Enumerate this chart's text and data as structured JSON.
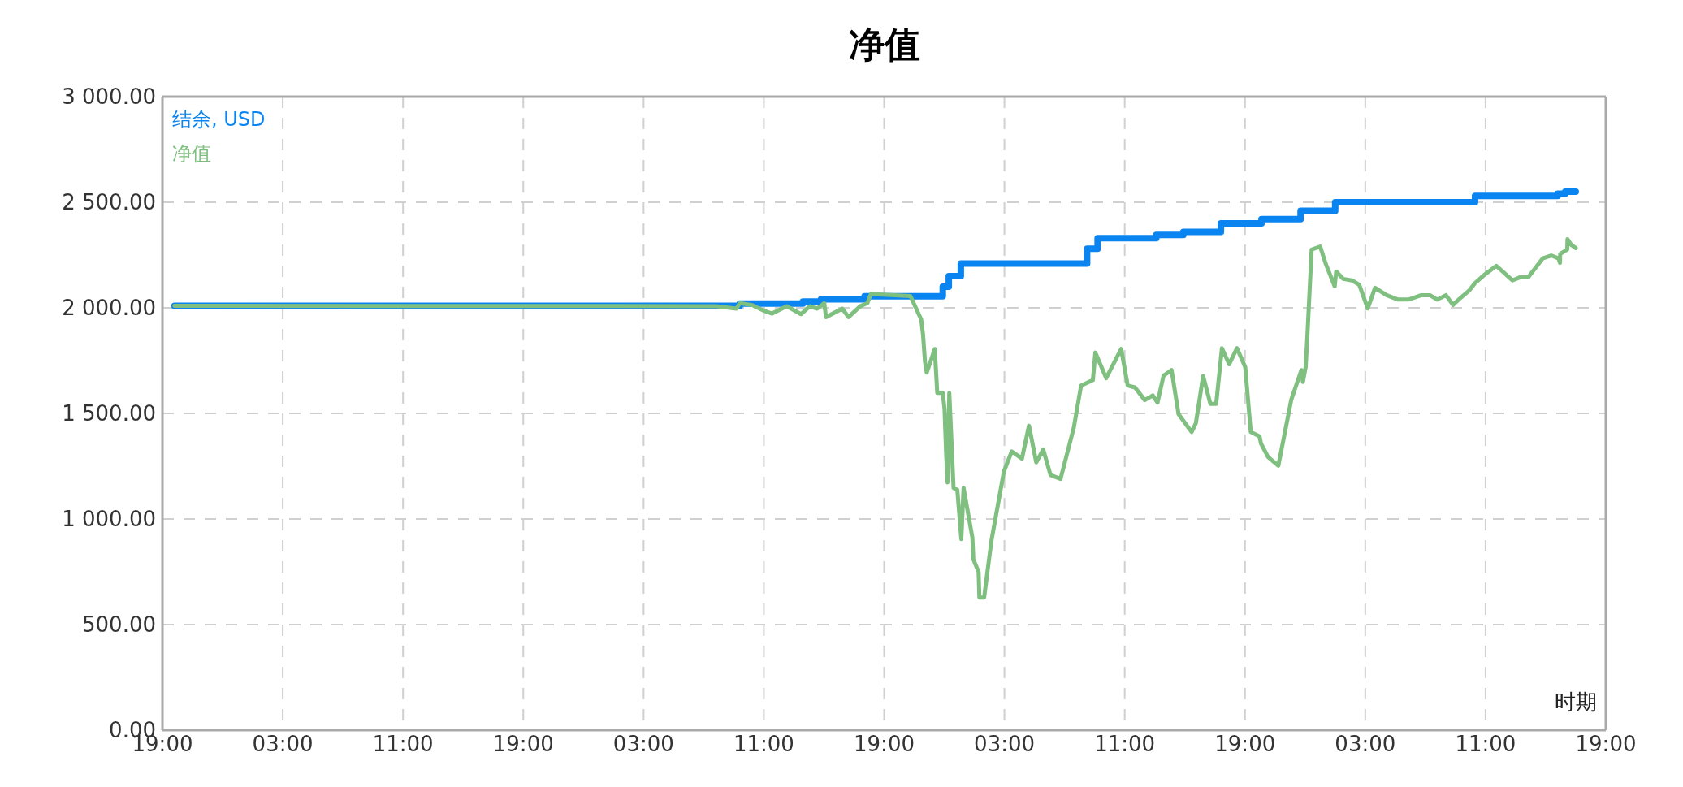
{
  "chart_data": {
    "type": "line",
    "title": "净值",
    "xlabel": "时期",
    "xlim": [
      "--01-01T19:00",
      "--01-05T19:00"
    ],
    "xticks": [
      {
        "value": "--01-01T19:00",
        "label": "19:00"
      },
      {
        "value": "--01-02T03:00",
        "label": "03:00"
      },
      {
        "value": "--01-02T11:00",
        "label": "11:00"
      },
      {
        "value": "--01-02T19:00",
        "label": "19:00"
      },
      {
        "value": "--01-03T03:00",
        "label": "03:00"
      },
      {
        "value": "--01-03T11:00",
        "label": "11:00"
      },
      {
        "value": "--01-03T19:00",
        "label": "19:00"
      },
      {
        "value": "--01-04T03:00",
        "label": "03:00"
      },
      {
        "value": "--01-04T11:00",
        "label": "11:00"
      },
      {
        "value": "--01-04T19:00",
        "label": "19:00"
      },
      {
        "value": "--01-05T03:00",
        "label": "03:00"
      },
      {
        "value": "--01-05T11:00",
        "label": "11:00"
      },
      {
        "value": "--01-05T19:00",
        "label": "19:00"
      }
    ],
    "ylim": [
      0,
      3000
    ],
    "yticks": [
      {
        "value": 0,
        "label": "0.00"
      },
      {
        "value": 500,
        "label": "500.00"
      },
      {
        "value": 1000,
        "label": "1 000.00"
      },
      {
        "value": 1500,
        "label": "1 500.00"
      },
      {
        "value": 2000,
        "label": "2 000.00"
      },
      {
        "value": 2500,
        "label": "2 500.00"
      },
      {
        "value": 3000,
        "label": "3 000.00"
      }
    ],
    "grid": true,
    "legend": "top left",
    "marker": "none",
    "series": [
      {
        "name": "结余, USD",
        "type": "step",
        "color": "#0a84f0",
        "x": [
          "--01-01T19:48",
          "--01-03T09:24",
          "--01-03T13:36",
          "--01-03T14:48",
          "--01-03T17:42",
          "--01-03T22:54",
          "--01-03T23:18",
          "--01-04T00:06",
          "--01-04T08:30",
          "--01-04T09:12",
          "--01-04T13:06",
          "--01-04T14:54",
          "--01-04T17:24",
          "--01-04T20:06",
          "--01-04T22:42",
          "--01-05T01:00",
          "--01-05T10:18",
          "--01-05T15:48",
          "--01-05T16:18",
          "--01-05T17:00"
        ],
        "values": [
          2010,
          2020,
          2030,
          2040,
          2055,
          2100,
          2150,
          2210,
          2280,
          2330,
          2345,
          2360,
          2400,
          2420,
          2460,
          2500,
          2530,
          2540,
          2550,
          2550
        ]
      },
      {
        "name": "净值",
        "color": "#7fbf7f",
        "x": [
          "--01-01T19:48",
          "--01-03T07:51",
          "--01-03T09:10",
          "--01-03T09:24",
          "--01-03T10:14",
          "--01-03T10:58",
          "--01-03T11:33",
          "--01-03T12:31",
          "--01-03T13:28",
          "--01-03T14:04",
          "--01-03T14:32",
          "--01-03T15:01",
          "--01-03T15:08",
          "--01-03T16:13",
          "--01-03T16:38",
          "--01-03T17:25",
          "--01-03T17:53",
          "--01-03T18:07",
          "--01-03T20:45",
          "--01-03T21:28",
          "--01-03T21:35",
          "--01-03T21:43",
          "--01-03T21:50",
          "--01-03T22:22",
          "--01-03T22:32",
          "--01-03T22:54",
          "--01-03T23:01",
          "--01-03T23:08",
          "--01-03T23:13",
          "--01-03T23:20",
          "--01-03T23:37",
          "--01-03T23:52",
          "--01-04T00:08",
          "--01-04T00:17",
          "--01-04T00:52",
          "--01-04T00:56",
          "--01-04T01:17",
          "--01-04T01:20",
          "--01-04T01:39",
          "--01-04T02:08",
          "--01-04T02:58",
          "--01-04T03:29",
          "--01-04T04:10",
          "--01-04T04:38",
          "--01-04T05:07",
          "--01-04T05:35",
          "--01-04T06:04",
          "--01-04T06:44",
          "--01-04T07:37",
          "--01-04T08:06",
          "--01-04T08:53",
          "--01-04T09:03",
          "--01-04T09:46",
          "--01-04T10:46",
          "--01-04T11:12",
          "--01-04T11:41",
          "--01-04T12:20",
          "--01-04T12:52",
          "--01-04T13:11",
          "--01-04T13:35",
          "--01-04T14:07",
          "--01-04T14:35",
          "--01-04T15:27",
          "--01-04T15:44",
          "--01-04T16:13",
          "--01-04T16:42",
          "--01-04T17:05",
          "--01-04T17:28",
          "--01-04T17:57",
          "--01-04T18:28",
          "--01-04T19:01",
          "--01-04T19:23",
          "--01-04T19:58",
          "--01-04T20:04",
          "--01-04T20:32",
          "--01-04T21:13",
          "--01-04T22:05",
          "--01-04T22:45",
          "--01-04T22:51",
          "--01-04T23:02",
          "--01-04T23:08",
          "--01-04T23:26",
          "--01-05T00:00",
          "--01-05T00:23",
          "--01-05T00:58",
          "--01-05T01:04",
          "--01-05T01:32",
          "--01-05T02:07",
          "--01-05T02:36",
          "--01-05T03:10",
          "--01-05T03:39",
          "--01-05T04:25",
          "--01-05T05:11",
          "--01-05T05:52",
          "--01-05T06:44",
          "--01-05T07:18",
          "--01-05T07:47",
          "--01-05T08:22",
          "--01-05T08:50",
          "--01-05T09:19",
          "--01-05T09:54",
          "--01-05T10:17",
          "--01-05T10:57",
          "--01-05T11:43",
          "--01-05T12:47",
          "--01-05T13:16",
          "--01-05T13:50",
          "--01-05T14:48",
          "--01-05T15:22",
          "--01-05T15:51",
          "--01-05T15:57",
          "--01-05T15:58",
          "--01-05T16:26",
          "--01-05T16:27",
          "--01-05T16:43",
          "--01-05T17:00"
        ],
        "values": [
          2010,
          2008,
          1996,
          2022,
          2013,
          1987,
          1973,
          2008,
          1970,
          2008,
          1996,
          2022,
          1956,
          1996,
          1956,
          2008,
          2022,
          2065,
          2056,
          1944,
          1875,
          1745,
          1693,
          1805,
          1597,
          1597,
          1520,
          1294,
          1173,
          1597,
          1147,
          1138,
          905,
          1147,
          913,
          809,
          749,
          628,
          628,
          896,
          1225,
          1320,
          1286,
          1442,
          1268,
          1329,
          1208,
          1190,
          1433,
          1632,
          1658,
          1788,
          1667,
          1805,
          1632,
          1623,
          1563,
          1585,
          1551,
          1679,
          1705,
          1496,
          1412,
          1454,
          1677,
          1545,
          1545,
          1809,
          1733,
          1809,
          1719,
          1412,
          1391,
          1357,
          1294,
          1252,
          1566,
          1705,
          1649,
          1719,
          1844,
          2276,
          2290,
          2206,
          2102,
          2172,
          2137,
          2130,
          2109,
          1997,
          2095,
          2060,
          2039,
          2039,
          2060,
          2060,
          2039,
          2060,
          2014,
          2046,
          2081,
          2116,
          2158,
          2199,
          2130,
          2144,
          2144,
          2234,
          2248,
          2234,
          2213,
          2255,
          2276,
          2325,
          2297,
          2283
        ]
      }
    ]
  }
}
